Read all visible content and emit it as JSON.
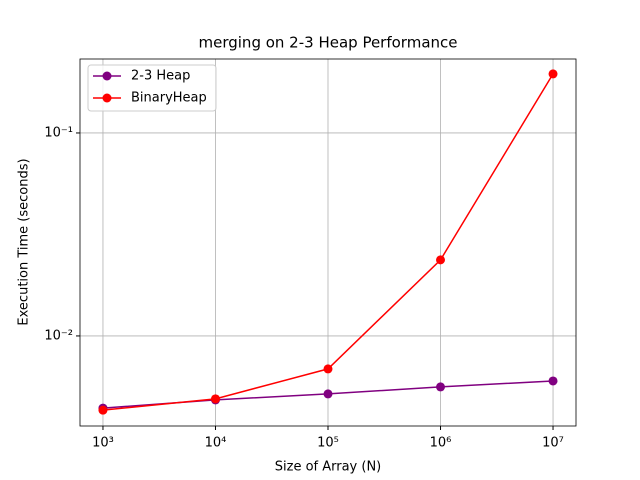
{
  "chart_data": {
    "type": "line",
    "title": "merging on 2-3 Heap Performance",
    "xlabel": "Size of Array (N)",
    "ylabel": "Execution Time (seconds)",
    "x": [
      1000,
      10000,
      100000,
      1000000,
      10000000
    ],
    "series": [
      {
        "name": "2-3 Heap",
        "color": "#800080",
        "values": [
          0.00441,
          0.00484,
          0.00518,
          0.00561,
          0.006
        ]
      },
      {
        "name": "BinaryHeap",
        "color": "#ff0000",
        "values": [
          0.00431,
          0.0049,
          0.00688,
          0.0237,
          0.1954
        ]
      }
    ],
    "xscale": "log",
    "yscale": "log",
    "xlim": [
      625,
      16000000
    ],
    "ylim": [
      0.0036,
      0.2314
    ],
    "xticks": [
      {
        "value": 1000,
        "label": "10³"
      },
      {
        "value": 10000,
        "label": "10⁴"
      },
      {
        "value": 100000,
        "label": "10⁵"
      },
      {
        "value": 1000000,
        "label": "10⁶"
      },
      {
        "value": 10000000,
        "label": "10⁷"
      }
    ],
    "yticks": [
      {
        "value": 0.01,
        "label": "10⁻²"
      },
      {
        "value": 0.1,
        "label": "10⁻¹"
      }
    ],
    "grid": true,
    "legend": "upper-left"
  }
}
